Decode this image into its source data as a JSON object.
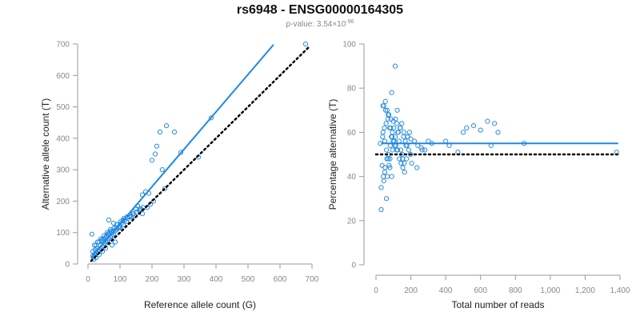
{
  "title": "rs6948 - ENSG00000164305",
  "subtitle_prefix": "p-value: 3.54×10",
  "subtitle_exp": "-96",
  "colors": {
    "points": "#2b8ce0",
    "fit_line": "#1f88e5",
    "reference_line": "#000000",
    "axis": "#999999",
    "tick_text": "#888888",
    "label_text": "#222222"
  },
  "chart_data": [
    {
      "type": "scatter",
      "xlabel": "Reference allele count (G)",
      "ylabel": "Alternative allele count (T)",
      "xlim": [
        0,
        700
      ],
      "ylim": [
        0,
        700
      ],
      "xticks": [
        0,
        100,
        200,
        300,
        400,
        500,
        600,
        700
      ],
      "yticks": [
        0,
        100,
        200,
        300,
        400,
        500,
        600,
        700
      ],
      "xtick_labels": [
        "0",
        "100",
        "200",
        "300",
        "400",
        "500",
        "600",
        "700"
      ],
      "ytick_labels": [
        "0",
        "100",
        "200",
        "300",
        "400",
        "500",
        "600",
        "700"
      ],
      "fit_line": {
        "x": [
          10,
          580
        ],
        "y": [
          20,
          698
        ],
        "style": "solid"
      },
      "reference_line": {
        "x": [
          10,
          690
        ],
        "y": [
          10,
          690
        ],
        "style": "dotted"
      },
      "x": [
        680,
        385,
        245,
        225,
        270,
        215,
        210,
        200,
        232,
        290,
        345,
        240,
        180,
        170,
        190,
        155,
        150,
        140,
        130,
        120,
        110,
        100,
        95,
        90,
        85,
        80,
        75,
        70,
        65,
        60,
        55,
        50,
        45,
        40,
        35,
        30,
        25,
        20,
        15,
        12,
        60,
        65,
        70,
        50,
        40,
        30,
        20,
        80,
        90,
        100,
        110,
        130,
        75,
        85,
        55,
        45,
        35,
        25,
        18,
        28,
        38,
        48,
        58,
        68,
        78,
        88,
        98,
        105,
        115,
        125,
        135,
        145,
        160,
        165,
        170,
        185,
        195,
        205,
        25,
        35,
        45,
        55,
        65,
        75,
        15,
        22,
        42,
        52,
        62,
        72,
        82,
        92,
        102,
        112,
        122,
        132,
        142,
        152,
        162,
        172
      ],
      "y": [
        700,
        465,
        440,
        420,
        420,
        375,
        350,
        330,
        300,
        355,
        340,
        240,
        230,
        220,
        225,
        185,
        175,
        160,
        150,
        135,
        125,
        120,
        115,
        110,
        105,
        95,
        90,
        85,
        80,
        75,
        70,
        65,
        55,
        50,
        45,
        40,
        35,
        30,
        25,
        95,
        100,
        140,
        110,
        90,
        80,
        70,
        60,
        130,
        125,
        115,
        140,
        150,
        60,
        70,
        50,
        40,
        30,
        20,
        15,
        50,
        60,
        80,
        90,
        100,
        105,
        115,
        120,
        130,
        140,
        145,
        150,
        155,
        170,
        175,
        160,
        180,
        190,
        200,
        60,
        70,
        75,
        85,
        95,
        100,
        40,
        45,
        75,
        80,
        95,
        105,
        115,
        125,
        135,
        145,
        150,
        155,
        160,
        165,
        175,
        180
      ]
    },
    {
      "type": "scatter",
      "xlabel": "Total number of reads",
      "ylabel": "Percentage alternative (T)",
      "xlim": [
        0,
        1400
      ],
      "ylim": [
        0,
        100
      ],
      "xticks": [
        0,
        200,
        400,
        600,
        800,
        1000,
        1200,
        1400
      ],
      "yticks": [
        0,
        20,
        40,
        60,
        80,
        100
      ],
      "xtick_labels": [
        "0",
        "200",
        "400",
        "600",
        "800",
        "1,000",
        "1,200",
        "1,400"
      ],
      "ytick_labels": [
        "0",
        "20",
        "40",
        "60",
        "80",
        "100"
      ],
      "fit_line": {
        "x": [
          30,
          1390
        ],
        "y": [
          55,
          55
        ],
        "style": "solid"
      },
      "reference_line": {
        "x": [
          0,
          1390
        ],
        "y": [
          50,
          50
        ],
        "style": "dotted"
      },
      "x": [
        110,
        30,
        45,
        60,
        75,
        90,
        40,
        55,
        70,
        85,
        100,
        120,
        140,
        160,
        180,
        200,
        220,
        240,
        260,
        280,
        300,
        320,
        400,
        420,
        470,
        500,
        520,
        560,
        600,
        640,
        660,
        680,
        700,
        850,
        1380,
        35,
        50,
        65,
        80,
        95,
        110,
        125,
        150,
        175,
        205,
        235,
        265,
        25,
        38,
        48,
        58,
        68,
        78,
        88,
        98,
        108,
        118,
        128,
        138,
        148,
        158,
        168,
        178,
        188,
        198,
        30,
        42,
        52,
        62,
        72,
        82,
        92,
        102,
        112,
        122,
        132,
        142,
        152,
        162,
        172,
        182,
        192,
        44,
        54,
        64,
        74,
        84,
        94,
        104,
        114,
        124,
        134,
        144,
        154,
        164,
        40,
        50,
        60,
        70,
        80,
        90
      ],
      "y": [
        90,
        25,
        38,
        30,
        45,
        78,
        72,
        70,
        68,
        66,
        65,
        64,
        62,
        60,
        58,
        57,
        56,
        54,
        53,
        52,
        56,
        55,
        56,
        54,
        51,
        60,
        62,
        63,
        61,
        65,
        54,
        64,
        60,
        55,
        51,
        45,
        42,
        40,
        48,
        52,
        58,
        60,
        50,
        48,
        46,
        44,
        52,
        55,
        58,
        62,
        64,
        66,
        62,
        58,
        56,
        54,
        52,
        60,
        62,
        64,
        58,
        56,
        54,
        52,
        50,
        35,
        40,
        44,
        48,
        50,
        54,
        58,
        62,
        66,
        70,
        56,
        52,
        48,
        46,
        54,
        58,
        60,
        72,
        74,
        70,
        68,
        62,
        60,
        56,
        54,
        52,
        48,
        46,
        44,
        42,
        60,
        56,
        52,
        48,
        44,
        40
      ]
    }
  ]
}
